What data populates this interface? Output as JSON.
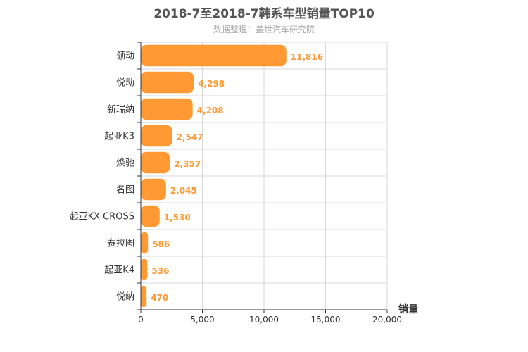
{
  "chart_data": {
    "type": "bar",
    "orientation": "horizontal",
    "title": "2018-7至2018-7韩系车型销量TOP10",
    "subtitle": "数据整理：盖世汽车研究院",
    "xlabel": "销量",
    "ylabel": "",
    "categories": [
      "领动",
      "悦动",
      "新瑞纳",
      "起亚K3",
      "焕驰",
      "名图",
      "起亚KX CROSS",
      "赛拉图",
      "起亚K4",
      "悦纳"
    ],
    "values": [
      11816,
      4298,
      4208,
      2547,
      2357,
      2045,
      1530,
      586,
      536,
      470
    ],
    "value_labels": [
      "11,816",
      "4,298",
      "4,208",
      "2,547",
      "2,357",
      "2,045",
      "1,530",
      "586",
      "536",
      "470"
    ],
    "xlim": [
      0,
      20000
    ],
    "xticks": [
      0,
      5000,
      10000,
      15000,
      20000
    ],
    "xtick_labels": [
      "0",
      "5,000",
      "10,000",
      "15,000",
      "20,000"
    ],
    "grid": true,
    "legend": "none",
    "colors": {
      "bar": "#ff9933",
      "label": "#ff9933",
      "grid": "#d8d8d8",
      "axis": "#333333"
    }
  }
}
